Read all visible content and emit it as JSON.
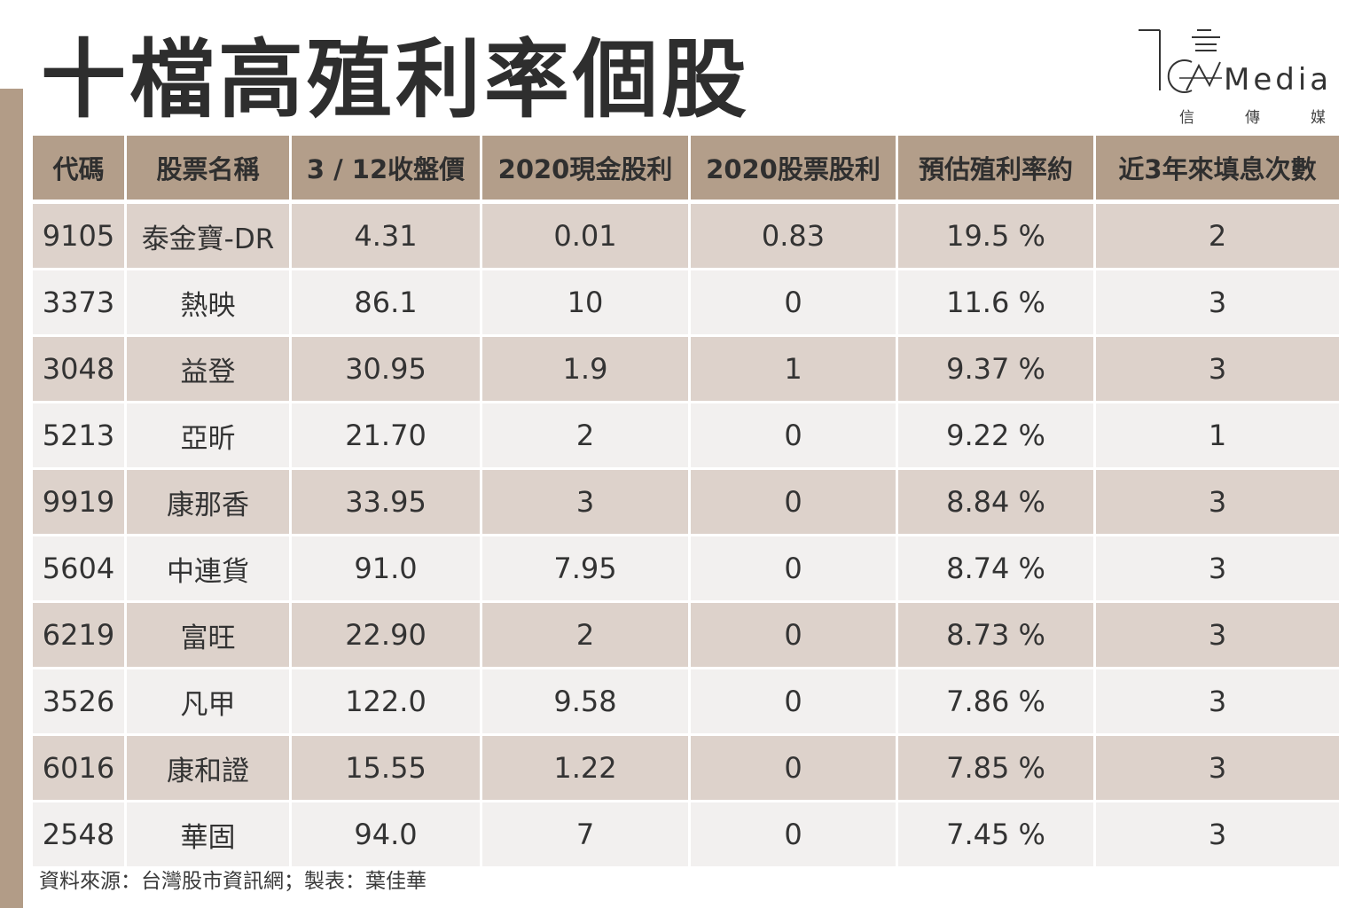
{
  "title": "十檔高殖利率個股",
  "logo": {
    "wordmark": "Media",
    "cn": [
      "信",
      "傳",
      "媒"
    ]
  },
  "colors": {
    "accent": "#b29c87",
    "header_bg": "#b39e8a",
    "row_dark": "#ddd2cb",
    "row_light": "#f2f0ef"
  },
  "table": {
    "headers": [
      "代碼",
      "股票名稱",
      "3 / 12收盤價",
      "2020現金股利",
      "2020股票股利",
      "預估殖利率約",
      "近3年來填息次數"
    ],
    "rows": [
      [
        "9105",
        "泰金寶-DR",
        "4.31",
        "0.01",
        "0.83",
        "19.5 %",
        "2"
      ],
      [
        "3373",
        "熱映",
        "86.1",
        "10",
        "0",
        "11.6 %",
        "3"
      ],
      [
        "3048",
        "益登",
        "30.95",
        "1.9",
        "1",
        "9.37 %",
        "3"
      ],
      [
        "5213",
        "亞昕",
        "21.70",
        "2",
        "0",
        "9.22 %",
        "1"
      ],
      [
        "9919",
        "康那香",
        "33.95",
        "3",
        "0",
        "8.84 %",
        "3"
      ],
      [
        "5604",
        "中連貨",
        "91.0",
        "7.95",
        "0",
        "8.74 %",
        "3"
      ],
      [
        "6219",
        "富旺",
        "22.90",
        "2",
        "0",
        "8.73 %",
        "3"
      ],
      [
        "3526",
        "凡甲",
        "122.0",
        "9.58",
        "0",
        "7.86 %",
        "3"
      ],
      [
        "6016",
        "康和證",
        "15.55",
        "1.22",
        "0",
        "7.85 %",
        "3"
      ],
      [
        "2548",
        "華固",
        "94.0",
        "7",
        "0",
        "7.45 %",
        "3"
      ]
    ]
  },
  "source": "資料來源：台灣股市資訊網；製表：葉佳華"
}
